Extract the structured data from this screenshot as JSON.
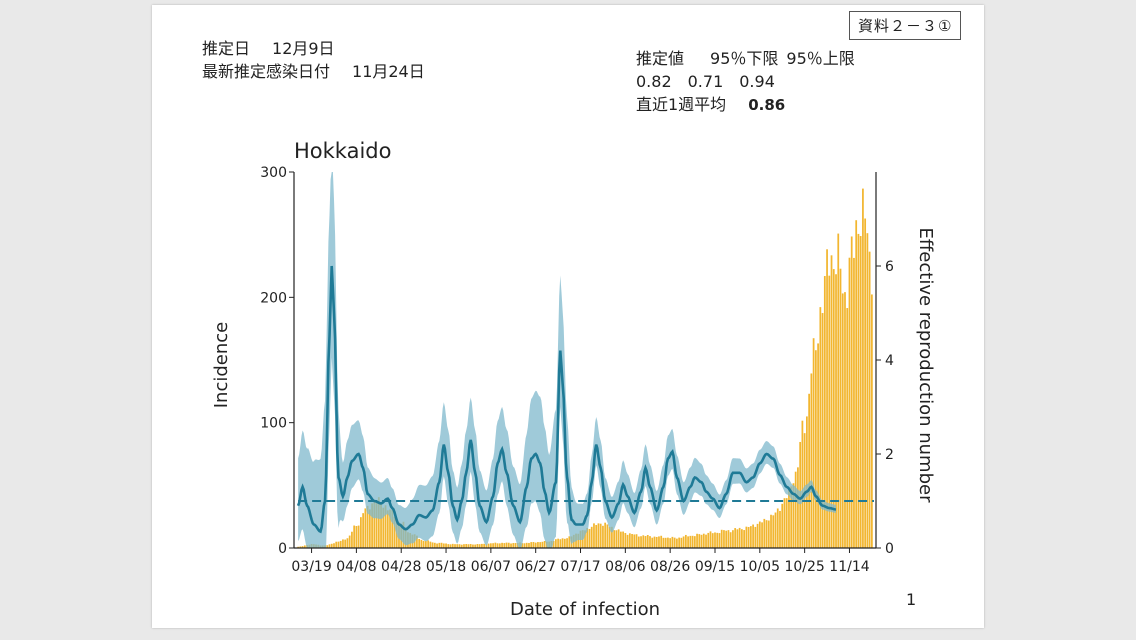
{
  "doc_label": "資料２－３①",
  "estimate": {
    "date_label": "推定日",
    "date_value": "12月9日",
    "latest_label": "最新推定感染日付",
    "latest_value": "11月24日"
  },
  "summary": {
    "header_estimate": "推定値",
    "header_lower": "95％下限",
    "header_upper": "95％上限",
    "value_estimate": "0.82",
    "value_lower": "0.71",
    "value_upper": "0.94",
    "weekly_label": "直近1週平均",
    "weekly_value": "0.86"
  },
  "page_number": "1",
  "colors": {
    "incidence_bar": "#f2b630",
    "rt_line": "#1f7a96",
    "rt_band": "#7fb8cc",
    "threshold": "#1f7a96"
  },
  "chart_data": {
    "type": "bar+line",
    "title": "Hokkaido",
    "xlabel": "Date of infection",
    "ylabel": "Incidence",
    "y2label": "Effective reproduction number",
    "ylim": [
      0,
      300
    ],
    "y2lim": [
      0,
      8
    ],
    "yticks": [
      0,
      100,
      200,
      300
    ],
    "y2ticks": [
      0,
      2,
      4,
      6
    ],
    "x_tick_labels": [
      "03/19",
      "04/08",
      "04/28",
      "05/18",
      "06/07",
      "06/27",
      "07/17",
      "08/06",
      "08/26",
      "09/15",
      "10/05",
      "10/25",
      "11/14"
    ],
    "start_date": "03/13",
    "num_days": 257,
    "incidence_keypoints": [
      [
        0,
        1
      ],
      [
        6,
        3
      ],
      [
        12,
        2
      ],
      [
        18,
        5
      ],
      [
        22,
        8
      ],
      [
        26,
        18
      ],
      [
        30,
        30
      ],
      [
        34,
        38
      ],
      [
        38,
        35
      ],
      [
        42,
        28
      ],
      [
        46,
        20
      ],
      [
        50,
        12
      ],
      [
        56,
        6
      ],
      [
        62,
        4
      ],
      [
        70,
        3
      ],
      [
        80,
        3
      ],
      [
        90,
        4
      ],
      [
        100,
        4
      ],
      [
        110,
        5
      ],
      [
        120,
        8
      ],
      [
        126,
        13
      ],
      [
        132,
        18
      ],
      [
        136,
        20
      ],
      [
        140,
        16
      ],
      [
        146,
        12
      ],
      [
        152,
        10
      ],
      [
        160,
        9
      ],
      [
        168,
        8
      ],
      [
        176,
        10
      ],
      [
        184,
        12
      ],
      [
        192,
        14
      ],
      [
        200,
        16
      ],
      [
        206,
        20
      ],
      [
        212,
        26
      ],
      [
        218,
        40
      ],
      [
        222,
        60
      ],
      [
        226,
        100
      ],
      [
        230,
        150
      ],
      [
        234,
        200
      ],
      [
        238,
        236
      ],
      [
        241,
        225
      ],
      [
        244,
        205
      ],
      [
        247,
        228
      ],
      [
        250,
        268
      ],
      [
        253,
        258
      ],
      [
        256,
        228
      ]
    ],
    "rt_keypoints": [
      [
        0,
        0.9
      ],
      [
        2,
        1.3
      ],
      [
        4,
        0.9
      ],
      [
        7,
        0.5
      ],
      [
        10,
        0.35
      ],
      [
        12,
        1.0
      ],
      [
        14,
        4.5
      ],
      [
        15,
        6.0
      ],
      [
        16,
        5.0
      ],
      [
        18,
        1.5
      ],
      [
        20,
        1.1
      ],
      [
        22,
        1.5
      ],
      [
        24,
        1.85
      ],
      [
        27,
        2.0
      ],
      [
        29,
        1.7
      ],
      [
        31,
        1.15
      ],
      [
        34,
        1.0
      ],
      [
        37,
        0.95
      ],
      [
        40,
        1.05
      ],
      [
        42,
        0.85
      ],
      [
        45,
        0.5
      ],
      [
        48,
        0.4
      ],
      [
        51,
        0.5
      ],
      [
        54,
        0.7
      ],
      [
        57,
        0.65
      ],
      [
        60,
        0.8
      ],
      [
        63,
        1.4
      ],
      [
        65,
        2.2
      ],
      [
        67,
        1.6
      ],
      [
        69,
        0.9
      ],
      [
        71,
        0.6
      ],
      [
        73,
        1.0
      ],
      [
        75,
        1.6
      ],
      [
        77,
        2.3
      ],
      [
        79,
        1.6
      ],
      [
        81,
        0.9
      ],
      [
        84,
        0.55
      ],
      [
        87,
        1.1
      ],
      [
        89,
        1.8
      ],
      [
        91,
        2.1
      ],
      [
        93,
        1.6
      ],
      [
        96,
        0.9
      ],
      [
        99,
        0.55
      ],
      [
        102,
        1.3
      ],
      [
        104,
        1.9
      ],
      [
        106,
        2.0
      ],
      [
        108,
        1.8
      ],
      [
        110,
        1.2
      ],
      [
        112,
        0.75
      ],
      [
        115,
        1.4
      ],
      [
        117,
        4.2
      ],
      [
        118,
        3.5
      ],
      [
        120,
        1.5
      ],
      [
        122,
        0.6
      ],
      [
        124,
        0.5
      ],
      [
        127,
        0.5
      ],
      [
        129,
        0.7
      ],
      [
        131,
        1.4
      ],
      [
        133,
        2.2
      ],
      [
        135,
        1.7
      ],
      [
        137,
        1.0
      ],
      [
        140,
        0.65
      ],
      [
        143,
        0.95
      ],
      [
        145,
        1.35
      ],
      [
        147,
        1.1
      ],
      [
        150,
        0.75
      ],
      [
        153,
        1.2
      ],
      [
        155,
        1.7
      ],
      [
        157,
        1.3
      ],
      [
        160,
        0.8
      ],
      [
        163,
        1.3
      ],
      [
        165,
        1.9
      ],
      [
        167,
        2.05
      ],
      [
        169,
        1.5
      ],
      [
        172,
        1.0
      ],
      [
        175,
        1.3
      ],
      [
        177,
        1.5
      ],
      [
        180,
        1.4
      ],
      [
        182,
        1.2
      ],
      [
        185,
        1.05
      ],
      [
        188,
        0.85
      ],
      [
        191,
        1.15
      ],
      [
        194,
        1.6
      ],
      [
        197,
        1.6
      ],
      [
        200,
        1.4
      ],
      [
        203,
        1.5
      ],
      [
        206,
        1.8
      ],
      [
        209,
        2.0
      ],
      [
        212,
        1.9
      ],
      [
        215,
        1.55
      ],
      [
        218,
        1.3
      ],
      [
        221,
        1.15
      ],
      [
        224,
        1.05
      ],
      [
        227,
        1.2
      ],
      [
        229,
        1.3
      ],
      [
        231,
        1.1
      ],
      [
        234,
        0.9
      ],
      [
        237,
        0.85
      ],
      [
        240,
        0.82
      ]
    ],
    "rt_band_width_keypoints": [
      [
        0,
        1.2
      ],
      [
        15,
        2.6
      ],
      [
        20,
        0.8
      ],
      [
        40,
        0.5
      ],
      [
        60,
        0.9
      ],
      [
        70,
        0.9
      ],
      [
        90,
        0.9
      ],
      [
        117,
        1.6
      ],
      [
        125,
        0.6
      ],
      [
        160,
        0.5
      ],
      [
        200,
        0.3
      ],
      [
        240,
        0.12
      ]
    ],
    "threshold_rt": 1.0,
    "rt_end_day": 240
  }
}
